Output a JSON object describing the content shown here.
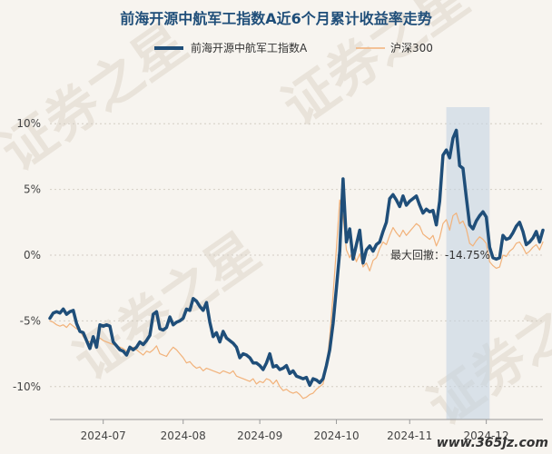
{
  "chart_data": {
    "type": "line",
    "title": "前海开源中航军工指数A近6个月累计收益率走势",
    "xlabel": "",
    "ylabel": "",
    "yticks": [
      "10%",
      "5%",
      "0%",
      "-5%",
      "-10%"
    ],
    "xticks": [
      "2024-07",
      "2024-08",
      "2024-09",
      "2024-10",
      "2024-11",
      "2024-12"
    ],
    "ylim": [
      -12.5,
      12.5
    ],
    "grid": "horizontal dotted",
    "legend_position": "top-center",
    "drawdown_label": "最大回撤：-14.75%",
    "drawdown_range": [
      119,
      132
    ],
    "series": [
      {
        "name": "前海开源中航军工指数A",
        "color": "#1f4e79",
        "values": [
          -4.8,
          -4.4,
          -4.3,
          -4.4,
          -4.1,
          -4.5,
          -4.3,
          -4.2,
          -5.2,
          -5.8,
          -5.9,
          -6.5,
          -7.1,
          -6.2,
          -7.0,
          -5.3,
          -5.4,
          -5.3,
          -5.4,
          -6.6,
          -6.9,
          -7.2,
          -7.3,
          -7.6,
          -7.0,
          -7.2,
          -7.0,
          -6.6,
          -6.8,
          -6.5,
          -6.1,
          -4.5,
          -4.3,
          -5.6,
          -5.7,
          -5.5,
          -4.7,
          -5.3,
          -5.1,
          -5.0,
          -4.8,
          -4.1,
          -4.2,
          -3.3,
          -3.5,
          -3.9,
          -4.2,
          -3.6,
          -5.1,
          -6.2,
          -5.9,
          -6.6,
          -5.8,
          -6.3,
          -6.5,
          -6.7,
          -7.0,
          -7.8,
          -7.5,
          -7.6,
          -7.8,
          -8.2,
          -8.2,
          -8.4,
          -8.7,
          -8.2,
          -7.5,
          -8.5,
          -8.4,
          -8.7,
          -8.6,
          -8.4,
          -9.0,
          -8.8,
          -9.2,
          -9.3,
          -9.4,
          -9.3,
          -9.9,
          -9.4,
          -9.5,
          -9.7,
          -9.4,
          -8.4,
          -7.2,
          -5.2,
          -2.5,
          0.3,
          5.8,
          1.0,
          2.0,
          -0.3,
          0.8,
          1.9,
          -0.6,
          0.4,
          0.7,
          0.3,
          0.8,
          1.0,
          1.8,
          2.5,
          4.3,
          4.6,
          4.2,
          3.7,
          4.5,
          3.8,
          4.1,
          4.3,
          4.5,
          3.8,
          3.2,
          3.5,
          3.3,
          3.4,
          2.3,
          4.1,
          7.6,
          8.0,
          7.4,
          8.9,
          9.5,
          6.8,
          6.6,
          4.4,
          2.3,
          2.0,
          2.6,
          3.0,
          3.3,
          2.9,
          0.6,
          -0.2,
          -0.3,
          -0.2,
          1.5,
          1.2,
          1.3,
          1.7,
          2.2,
          2.5,
          1.8,
          0.8,
          1.0,
          1.3,
          1.8,
          1.0,
          1.9
        ]
      },
      {
        "name": "沪深300",
        "color": "#f2b27a",
        "values": [
          -5.0,
          -5.1,
          -5.3,
          -5.4,
          -5.3,
          -5.5,
          -5.2,
          -5.4,
          -5.6,
          -5.7,
          -6.2,
          -6.5,
          -6.6,
          -6.4,
          -6.5,
          -6.3,
          -6.5,
          -6.6,
          -6.7,
          -6.8,
          -6.9,
          -7.0,
          -7.1,
          -7.3,
          -7.2,
          -7.0,
          -7.2,
          -7.4,
          -7.6,
          -7.3,
          -7.4,
          -7.2,
          -6.9,
          -7.5,
          -7.6,
          -7.7,
          -7.3,
          -7.0,
          -7.2,
          -7.5,
          -7.8,
          -8.2,
          -8.1,
          -8.4,
          -8.6,
          -8.5,
          -8.8,
          -8.6,
          -8.7,
          -8.8,
          -8.9,
          -9.0,
          -8.8,
          -8.9,
          -9.0,
          -8.8,
          -9.2,
          -9.3,
          -9.4,
          -9.5,
          -9.6,
          -9.4,
          -9.8,
          -9.6,
          -9.7,
          -9.4,
          -9.5,
          -9.8,
          -9.5,
          -10.0,
          -10.3,
          -10.2,
          -10.4,
          -10.5,
          -10.4,
          -10.6,
          -10.9,
          -10.8,
          -10.6,
          -10.5,
          -10.2,
          -10.0,
          -9.8,
          -8.6,
          -6.2,
          -3.0,
          0.5,
          4.2,
          3.0,
          0.4,
          -0.2,
          0.3,
          -0.5,
          0.1,
          -0.9,
          -0.6,
          -1.2,
          -0.4,
          -0.2,
          0.5,
          1.0,
          0.8,
          1.5,
          2.1,
          1.7,
          1.4,
          1.9,
          1.5,
          1.8,
          2.1,
          2.4,
          2.2,
          1.6,
          1.4,
          1.2,
          1.5,
          0.7,
          1.3,
          2.4,
          2.7,
          1.9,
          3.0,
          3.2,
          2.4,
          2.6,
          2.0,
          0.9,
          0.7,
          1.1,
          1.4,
          1.2,
          0.9,
          -0.5,
          -0.8,
          -1.0,
          -0.9,
          0.0,
          -0.1,
          0.3,
          0.5,
          0.9,
          1.0,
          0.6,
          0.1,
          0.3,
          0.6,
          0.8,
          0.4,
          1.0
        ]
      }
    ]
  },
  "watermark": "证券之星",
  "source": "www.365jz.com"
}
